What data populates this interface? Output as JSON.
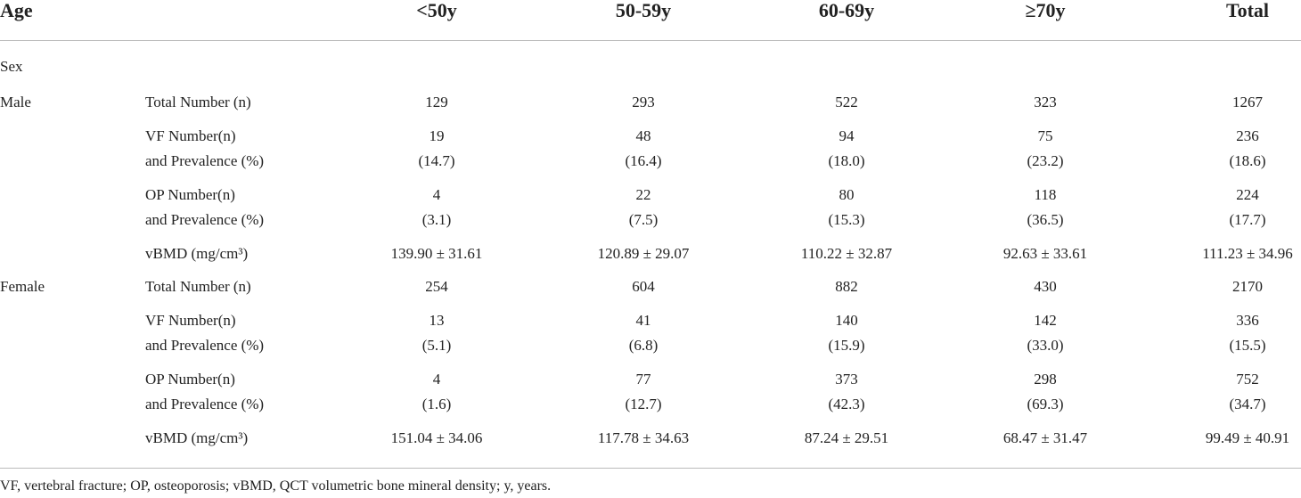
{
  "table": {
    "header": [
      "Age",
      "<50y",
      "50-59y",
      "60-69y",
      "≥70y",
      "Total"
    ],
    "section": "Sex",
    "groups": [
      {
        "name": "Male",
        "rows": [
          {
            "label": [
              "Total Number (n)"
            ],
            "cells": [
              [
                "129"
              ],
              [
                "293"
              ],
              [
                "522"
              ],
              [
                "323"
              ],
              [
                "1267"
              ]
            ]
          },
          {
            "label": [
              "VF Number(n)",
              "and Prevalence (%)"
            ],
            "cells": [
              [
                "19",
                "(14.7)"
              ],
              [
                "48",
                "(16.4)"
              ],
              [
                "94",
                "(18.0)"
              ],
              [
                "75",
                "(23.2)"
              ],
              [
                "236",
                "(18.6)"
              ]
            ]
          },
          {
            "label": [
              "OP Number(n)",
              "and Prevalence (%)"
            ],
            "cells": [
              [
                "4",
                "(3.1)"
              ],
              [
                "22",
                "(7.5)"
              ],
              [
                "80",
                "(15.3)"
              ],
              [
                "118",
                "(36.5)"
              ],
              [
                "224",
                "(17.7)"
              ]
            ]
          },
          {
            "label": [
              "vBMD (mg/cm³)"
            ],
            "cells": [
              [
                "139.90 ± 31.61"
              ],
              [
                "120.89 ± 29.07"
              ],
              [
                "110.22 ± 32.87"
              ],
              [
                "92.63 ± 33.61"
              ],
              [
                "111.23 ± 34.96"
              ]
            ]
          }
        ]
      },
      {
        "name": "Female",
        "rows": [
          {
            "label": [
              "Total Number (n)"
            ],
            "cells": [
              [
                "254"
              ],
              [
                "604"
              ],
              [
                "882"
              ],
              [
                "430"
              ],
              [
                "2170"
              ]
            ]
          },
          {
            "label": [
              "VF Number(n)",
              "and Prevalence (%)"
            ],
            "cells": [
              [
                "13",
                "(5.1)"
              ],
              [
                "41",
                "(6.8)"
              ],
              [
                "140",
                "(15.9)"
              ],
              [
                "142",
                "(33.0)"
              ],
              [
                "336",
                "(15.5)"
              ]
            ]
          },
          {
            "label": [
              "OP Number(n)",
              "and Prevalence (%)"
            ],
            "cells": [
              [
                "4",
                "(1.6)"
              ],
              [
                "77",
                "(12.7)"
              ],
              [
                "373",
                "(42.3)"
              ],
              [
                "298",
                "(69.3)"
              ],
              [
                "752",
                "(34.7)"
              ]
            ]
          },
          {
            "label": [
              "vBMD (mg/cm³)"
            ],
            "cells": [
              [
                "151.04 ± 34.06"
              ],
              [
                "117.78 ± 34.63"
              ],
              [
                "87.24 ± 29.51"
              ],
              [
                "68.47 ± 31.47"
              ],
              [
                "99.49 ± 40.91"
              ]
            ]
          }
        ]
      }
    ],
    "footnote": "VF, vertebral fracture; OP, osteoporosis; vBMD, QCT volumetric bone mineral density; y, years."
  }
}
